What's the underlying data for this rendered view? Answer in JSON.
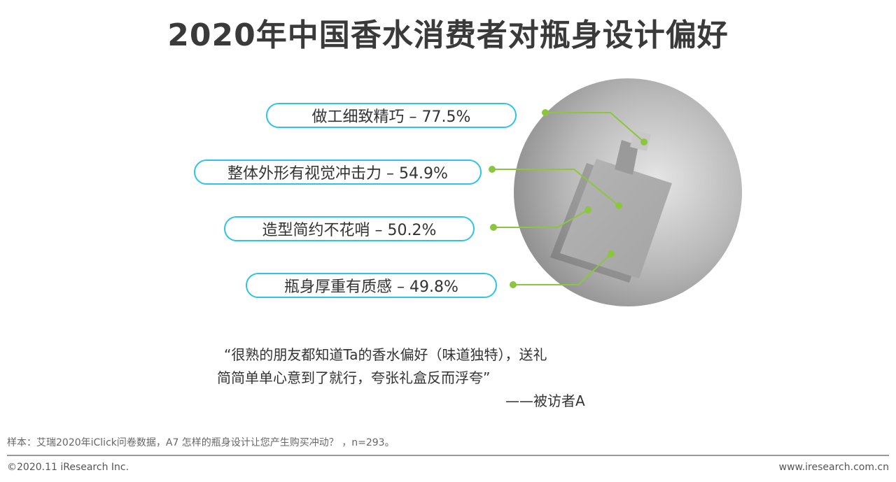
{
  "title": "2020年中国香水消费者对瓶身设计偏好",
  "items": [
    {
      "label": "做工细致精巧 – 77.5%",
      "percent": 77.5
    },
    {
      "label": "整体外形有视觉冲击力 – 54.9%",
      "percent": 54.9
    },
    {
      "label": "造型简约不花哨 – 50.2%",
      "percent": 50.2
    },
    {
      "label": "瓶身厚重有质感 – 49.8%",
      "percent": 49.8
    }
  ],
  "quote": {
    "line1": "“很熟的朋友都知道Ta的香水偏好（味道独特），送礼",
    "line2": "简简单单心意到了就行，夸张礼盒反而浮夸”",
    "attribution": "——被访者A"
  },
  "footer": {
    "note": "样本：艾瑞2020年iClick问卷数据，A7 怎样的瓶身设计让您产生购买冲动？ ，n=293。",
    "copyright": "©2020.11 iResearch Inc.",
    "url": "www.iresearch.com.cn"
  },
  "colors": {
    "pill_border": "#2ec4e6",
    "connector": "#8cc63f"
  }
}
